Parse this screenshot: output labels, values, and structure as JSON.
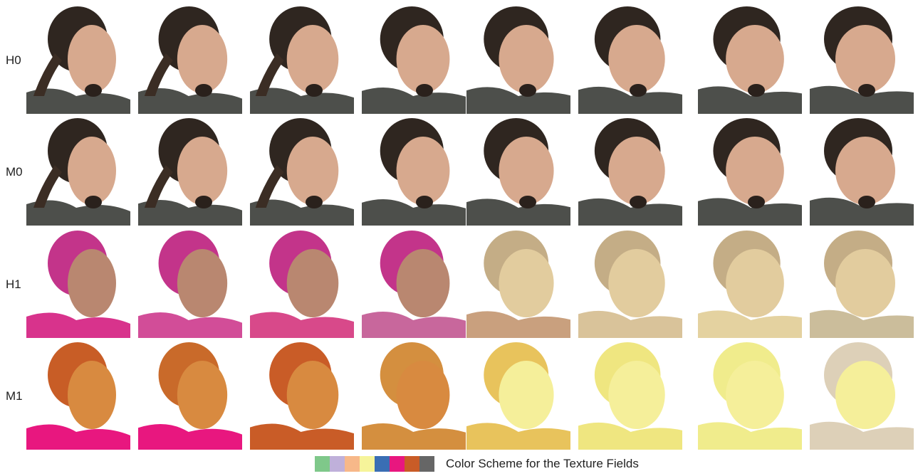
{
  "rows": [
    {
      "label": "H0",
      "kind": "photo"
    },
    {
      "label": "M0",
      "kind": "photo"
    },
    {
      "label": "H1",
      "kind": "field"
    },
    {
      "label": "M1",
      "kind": "field2"
    }
  ],
  "column_count": 8,
  "legend": {
    "text": "Color Scheme for the Texture Fields",
    "colors": [
      "#7fc88a",
      "#bfb0da",
      "#f7b889",
      "#f6f49a",
      "#3a6eb4",
      "#e8177f",
      "#c95c27",
      "#666666"
    ]
  }
}
